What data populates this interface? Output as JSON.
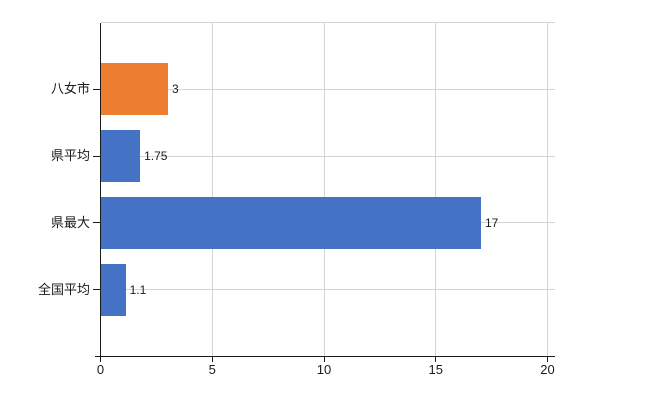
{
  "chart_data": {
    "type": "bar",
    "orientation": "horizontal",
    "title": "",
    "xlabel": "",
    "ylabel": "",
    "categories": [
      "八女市",
      "県平均",
      "県最大",
      "全国平均"
    ],
    "values": [
      3,
      1.75,
      17,
      1.1
    ],
    "value_labels": [
      "3",
      "1.75",
      "17",
      "1.1"
    ],
    "series": [
      {
        "name": "highlighted",
        "category": "八女市",
        "value": 3
      },
      {
        "name": "default",
        "category": "県平均",
        "value": 1.75
      },
      {
        "name": "default",
        "category": "県最大",
        "value": 17
      },
      {
        "name": "default",
        "category": "全国平均",
        "value": 1.1
      }
    ],
    "bar_colors": [
      "#ED7D31",
      "#4472C4",
      "#4472C4",
      "#4472C4"
    ],
    "xlim": [
      0,
      20
    ],
    "x_ticks": [
      0,
      5,
      10,
      15,
      20
    ],
    "grid": true,
    "legend_position": "none"
  },
  "colors": {
    "background": "#ffffff",
    "axis": "#1a1a1a",
    "gridline": "#d4d4d4",
    "text": "#1a1a1a",
    "highlight_bar": "#ED7D31",
    "default_bar": "#4472C4"
  }
}
